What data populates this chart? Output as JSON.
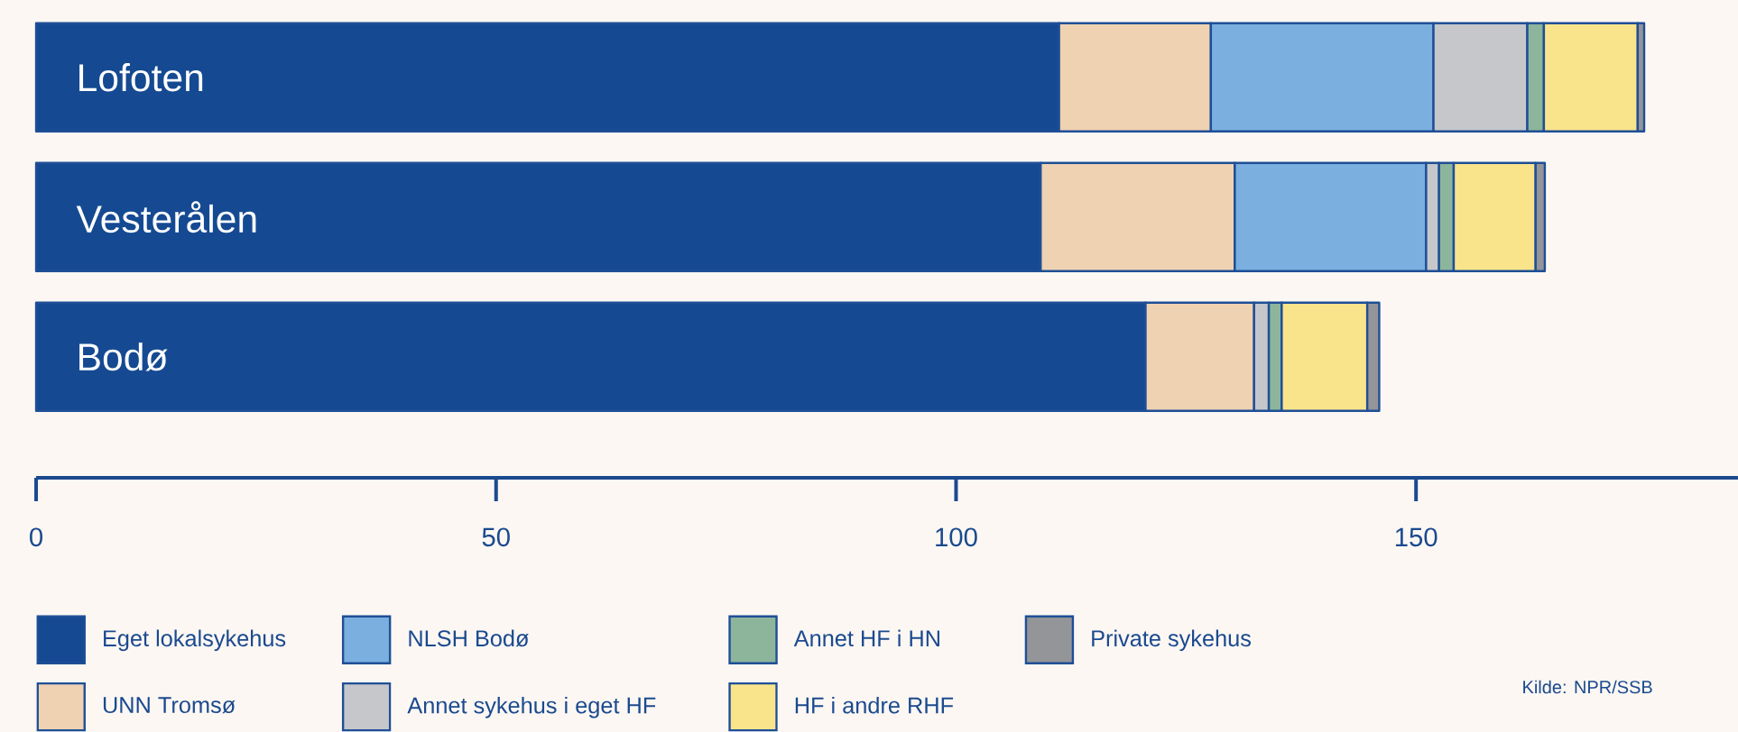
{
  "chart_data": {
    "type": "bar",
    "orientation": "horizontal",
    "stacked": true,
    "categories": [
      "Lofoten",
      "Vesterålen",
      "Bodø"
    ],
    "series": [
      {
        "name": "Eget lokalsykehus",
        "color": "#154a92",
        "values": [
          111.2,
          109.2,
          120.6
        ]
      },
      {
        "name": "UNN Tromsø",
        "color": "#efd2b2",
        "values": [
          16.5,
          21.1,
          11.8
        ]
      },
      {
        "name": "NLSH Bodø",
        "color": "#7aafdf",
        "values": [
          24.2,
          20.8,
          0
        ]
      },
      {
        "name": "Annet sykehus i eget HF",
        "color": "#c5c7cb",
        "values": [
          10.2,
          1.4,
          1.6
        ]
      },
      {
        "name": "Annet HF i HN",
        "color": "#8db59c",
        "values": [
          1.8,
          1.6,
          1.4
        ]
      },
      {
        "name": "HF i andre RHF",
        "color": "#f9e48c",
        "values": [
          10.2,
          8.9,
          9.3
        ]
      },
      {
        "name": "Private sykehus",
        "color": "#949598",
        "values": [
          0.7,
          1.0,
          1.3
        ]
      }
    ],
    "xlim": [
      0,
      185
    ],
    "xticks": [
      0,
      50,
      100,
      150
    ],
    "legend": "bottom",
    "annotations": [
      "Kilde: NPR/SSB"
    ]
  }
}
